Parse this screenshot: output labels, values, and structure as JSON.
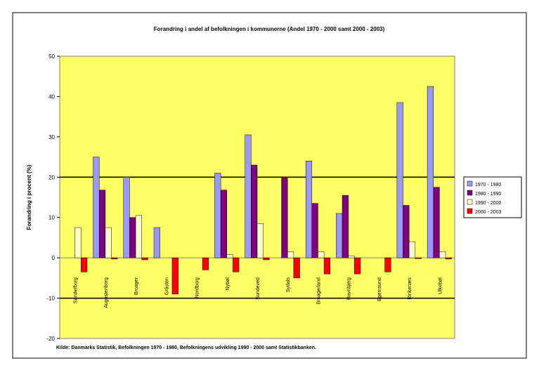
{
  "chart_data": {
    "type": "bar",
    "title": "Forandring i andel af befolkningen i kommunerne (Andel 1970 - 2000 samt 2000 - 2003)",
    "y_label": "Forandring i procent (%)",
    "source": "Kilde: Danmarks Statistik, Befolkningen 1970 - 1980, Befolkningens udvikling 1990 - 2000 samt Statistikbanken.",
    "categories": [
      "Sønderborg",
      "Augustenborg",
      "Broager",
      "Gråsten",
      "Nordborg",
      "Nybøl",
      "Sundeved",
      "Sydals",
      "Broagerland",
      "Havnbjerg",
      "Egernsund",
      "Rinkenæs",
      "Ulkebøl"
    ],
    "series": [
      {
        "name": "1970 - 1980",
        "color": "#9999ff",
        "values": [
          0,
          25,
          20,
          7.5,
          0,
          21,
          30.5,
          0,
          24,
          11,
          0,
          38.5,
          42.5
        ]
      },
      {
        "name": "1980 - 1990",
        "color": "#800080",
        "values": [
          0,
          16.8,
          10,
          0,
          0,
          16.8,
          23,
          20,
          13.5,
          15.5,
          0,
          13,
          17.5
        ]
      },
      {
        "name": "1990 - 2000",
        "color": "#ffffcc",
        "values": [
          7.5,
          7.5,
          10.5,
          0,
          0,
          0.8,
          8.5,
          1.5,
          1.5,
          0.5,
          0,
          4,
          1.5
        ]
      },
      {
        "name": "2000 - 2003",
        "color": "#ff0000",
        "values": [
          -3.5,
          -0.3,
          -0.5,
          -9,
          -3,
          -3.5,
          -0.5,
          -5,
          -4,
          -4,
          -3.5,
          -0.2,
          -0.3
        ]
      }
    ],
    "ylim": [
      -20,
      50
    ],
    "yticks": [
      -20,
      -10,
      0,
      10,
      20,
      30,
      40,
      50
    ],
    "grid_values": [
      -10,
      20
    ],
    "plot_color": "#ffff66",
    "legend": "right"
  }
}
